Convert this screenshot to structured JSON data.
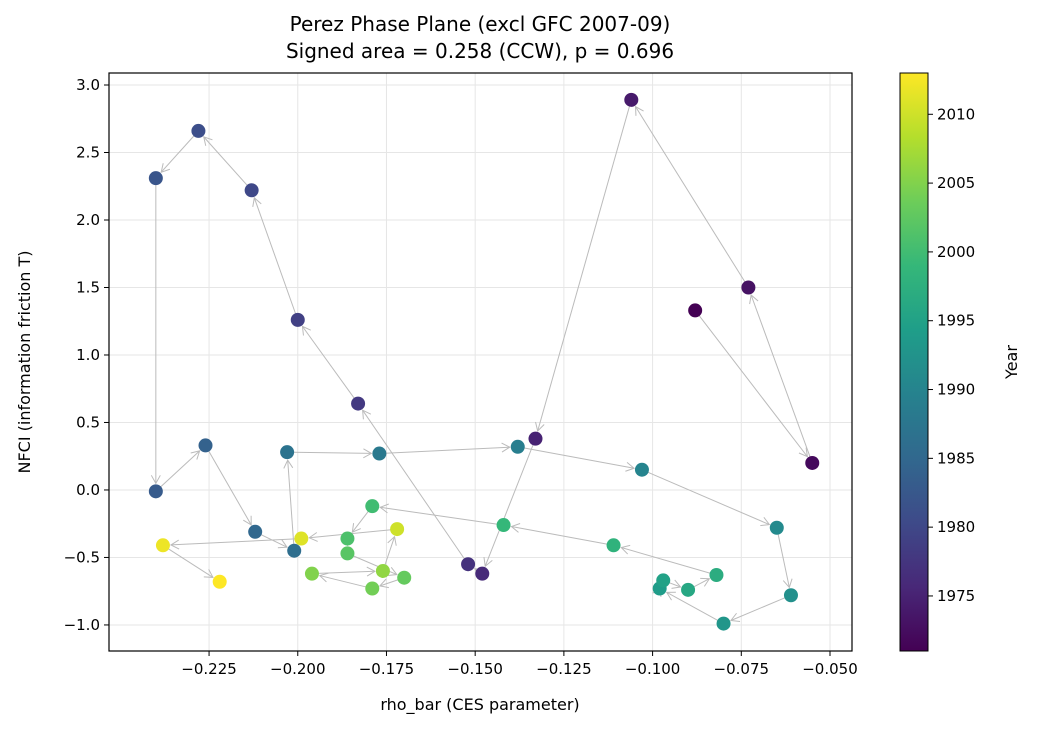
{
  "chart_data": {
    "type": "scatter",
    "title": "Perez Phase Plane (excl GFC 2007-09)",
    "subtitle": "Signed area = 0.258 (CCW), p = 0.696",
    "xlabel": "rho_bar (CES parameter)",
    "ylabel": "NFCI (information friction T)",
    "xlim": [
      -0.2532,
      -0.0438
    ],
    "ylim": [
      -1.193,
      3.089
    ],
    "xticks": [
      "−0.225",
      "−0.200",
      "−0.175",
      "−0.150",
      "−0.125",
      "−0.100",
      "−0.075",
      "−0.050"
    ],
    "xtick_values": [
      -0.225,
      -0.2,
      -0.175,
      -0.15,
      -0.125,
      -0.1,
      -0.075,
      -0.05
    ],
    "yticks": [
      "3.0",
      "2.5",
      "2.0",
      "1.5",
      "1.0",
      "0.5",
      "0.0",
      "−0.5",
      "−1.0"
    ],
    "ytick_values": [
      3.0,
      2.5,
      2.0,
      1.5,
      1.0,
      0.5,
      0.0,
      -0.5,
      -1.0
    ],
    "grid": true,
    "colormap": "viridis",
    "colorbar": {
      "label": "Year",
      "range": [
        1971,
        2013
      ],
      "ticks": [
        "1975",
        "1980",
        "1985",
        "1990",
        "1995",
        "2000",
        "2005",
        "2010"
      ],
      "tick_values": [
        1975,
        1980,
        1985,
        1990,
        1995,
        2000,
        2005,
        2010
      ]
    },
    "arrow_color": "#bbbbbb",
    "points": [
      {
        "year": 1971,
        "x": -0.088,
        "y": 1.33
      },
      {
        "year": 1972,
        "x": -0.055,
        "y": 0.2
      },
      {
        "year": 1973,
        "x": -0.073,
        "y": 1.5
      },
      {
        "year": 1974,
        "x": -0.106,
        "y": 2.89
      },
      {
        "year": 1975,
        "x": -0.133,
        "y": 0.38
      },
      {
        "year": 1976,
        "x": -0.148,
        "y": -0.62
      },
      {
        "year": 1977,
        "x": -0.152,
        "y": -0.55
      },
      {
        "year": 1978,
        "x": -0.183,
        "y": 0.64
      },
      {
        "year": 1979,
        "x": -0.2,
        "y": 1.26
      },
      {
        "year": 1980,
        "x": -0.213,
        "y": 2.22
      },
      {
        "year": 1981,
        "x": -0.228,
        "y": 2.66
      },
      {
        "year": 1982,
        "x": -0.24,
        "y": 2.31
      },
      {
        "year": 1983,
        "x": -0.24,
        "y": -0.01
      },
      {
        "year": 1984,
        "x": -0.226,
        "y": 0.33
      },
      {
        "year": 1985,
        "x": -0.212,
        "y": -0.31
      },
      {
        "year": 1986,
        "x": -0.201,
        "y": -0.45
      },
      {
        "year": 1987,
        "x": -0.203,
        "y": 0.28
      },
      {
        "year": 1988,
        "x": -0.177,
        "y": 0.27
      },
      {
        "year": 1989,
        "x": -0.138,
        "y": 0.32
      },
      {
        "year": 1990,
        "x": -0.103,
        "y": 0.15
      },
      {
        "year": 1991,
        "x": -0.065,
        "y": -0.28
      },
      {
        "year": 1992,
        "x": -0.061,
        "y": -0.78
      },
      {
        "year": 1993,
        "x": -0.08,
        "y": -0.99
      },
      {
        "year": 1994,
        "x": -0.098,
        "y": -0.73
      },
      {
        "year": 1995,
        "x": -0.097,
        "y": -0.67
      },
      {
        "year": 1996,
        "x": -0.09,
        "y": -0.74
      },
      {
        "year": 1997,
        "x": -0.082,
        "y": -0.63
      },
      {
        "year": 1998,
        "x": -0.111,
        "y": -0.41
      },
      {
        "year": 1999,
        "x": -0.142,
        "y": -0.26
      },
      {
        "year": 2000,
        "x": -0.179,
        "y": -0.12
      },
      {
        "year": 2001,
        "x": -0.186,
        "y": -0.36
      },
      {
        "year": 2002,
        "x": -0.186,
        "y": -0.47
      },
      {
        "year": 2003,
        "x": -0.17,
        "y": -0.65
      },
      {
        "year": 2004,
        "x": -0.179,
        "y": -0.73
      },
      {
        "year": 2005,
        "x": -0.196,
        "y": -0.62
      },
      {
        "year": 2006,
        "x": -0.176,
        "y": -0.6
      },
      {
        "year": 2010,
        "x": -0.172,
        "y": -0.29
      },
      {
        "year": 2011,
        "x": -0.199,
        "y": -0.36
      },
      {
        "year": 2012,
        "x": -0.238,
        "y": -0.41
      },
      {
        "year": 2013,
        "x": -0.222,
        "y": -0.68
      }
    ]
  }
}
